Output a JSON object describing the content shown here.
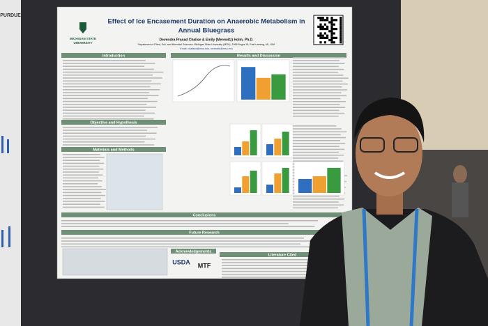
{
  "side_poster": {
    "title": "PURDUE"
  },
  "poster": {
    "title_lines": [
      "Effect of Ice Encasement Duration on Anaerobic Metabolism in",
      "Annual Bluegrass"
    ],
    "authors": "Devendra Prasad Chalise & Emily (Merewitz) Holm, Ph.D.",
    "department": "Department of Plant, Soil, and Microbial Sciences, Michigan State University (MSU), 1066 Bogue St, East Lansing, MI, USA",
    "email": "Email: chalised@msu.edu, merewitz@msu.edu",
    "logo_lines": [
      "MICHIGAN STATE",
      "UNIVERSITY"
    ],
    "sections": [
      "Introduction",
      "Results and Discussion",
      "Objective and Hypothesis",
      "Materials and Methods",
      "Conclusions",
      "Future Research",
      "Acknowledgements",
      "Literature Cited"
    ],
    "sponsors": [
      "USDA",
      "MTF"
    ]
  }
}
